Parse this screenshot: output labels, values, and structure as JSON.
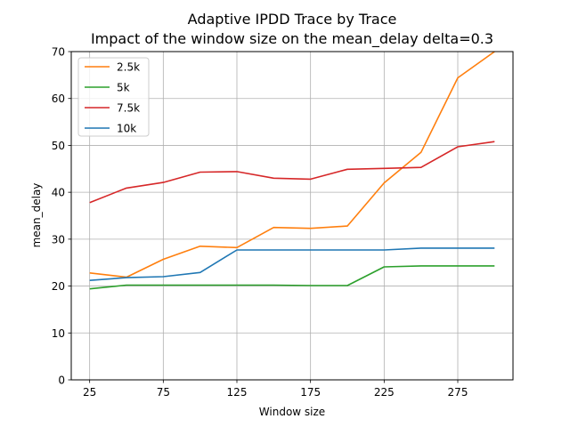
{
  "chart_data": {
    "type": "line",
    "title": "Adaptive IPDD Trace by Trace",
    "subtitle": "Impact of the window size on the mean_delay delta=0.3",
    "xlabel": "Window size",
    "ylabel": "mean_delay",
    "xlim": [
      12.5,
      312.5
    ],
    "ylim": [
      0,
      70
    ],
    "xticks": [
      25,
      75,
      125,
      175,
      225,
      275
    ],
    "yticks": [
      0,
      10,
      20,
      30,
      40,
      50,
      60,
      70
    ],
    "grid": true,
    "legend_position": "upper-left",
    "x": [
      25,
      50,
      75,
      100,
      125,
      150,
      175,
      200,
      225,
      250,
      275,
      300
    ],
    "series": [
      {
        "name": "2.5k",
        "color": "#ff7f0e",
        "values": [
          22.8,
          21.9,
          25.7,
          28.5,
          28.2,
          32.5,
          32.3,
          32.8,
          42.0,
          48.5,
          64.4,
          70.0
        ]
      },
      {
        "name": "5k",
        "color": "#2ca02c",
        "values": [
          19.4,
          20.2,
          20.2,
          20.2,
          20.2,
          20.2,
          20.1,
          20.1,
          24.1,
          24.3,
          24.3,
          24.3
        ]
      },
      {
        "name": "7.5k",
        "color": "#d62728",
        "values": [
          37.8,
          40.9,
          42.1,
          44.3,
          44.4,
          43.0,
          42.8,
          44.9,
          45.1,
          45.3,
          49.7,
          50.8
        ]
      },
      {
        "name": "10k",
        "color": "#1f77b4",
        "values": [
          21.2,
          21.8,
          22.0,
          22.9,
          27.7,
          27.7,
          27.7,
          27.7,
          27.7,
          28.1,
          28.1,
          28.1
        ]
      }
    ]
  }
}
